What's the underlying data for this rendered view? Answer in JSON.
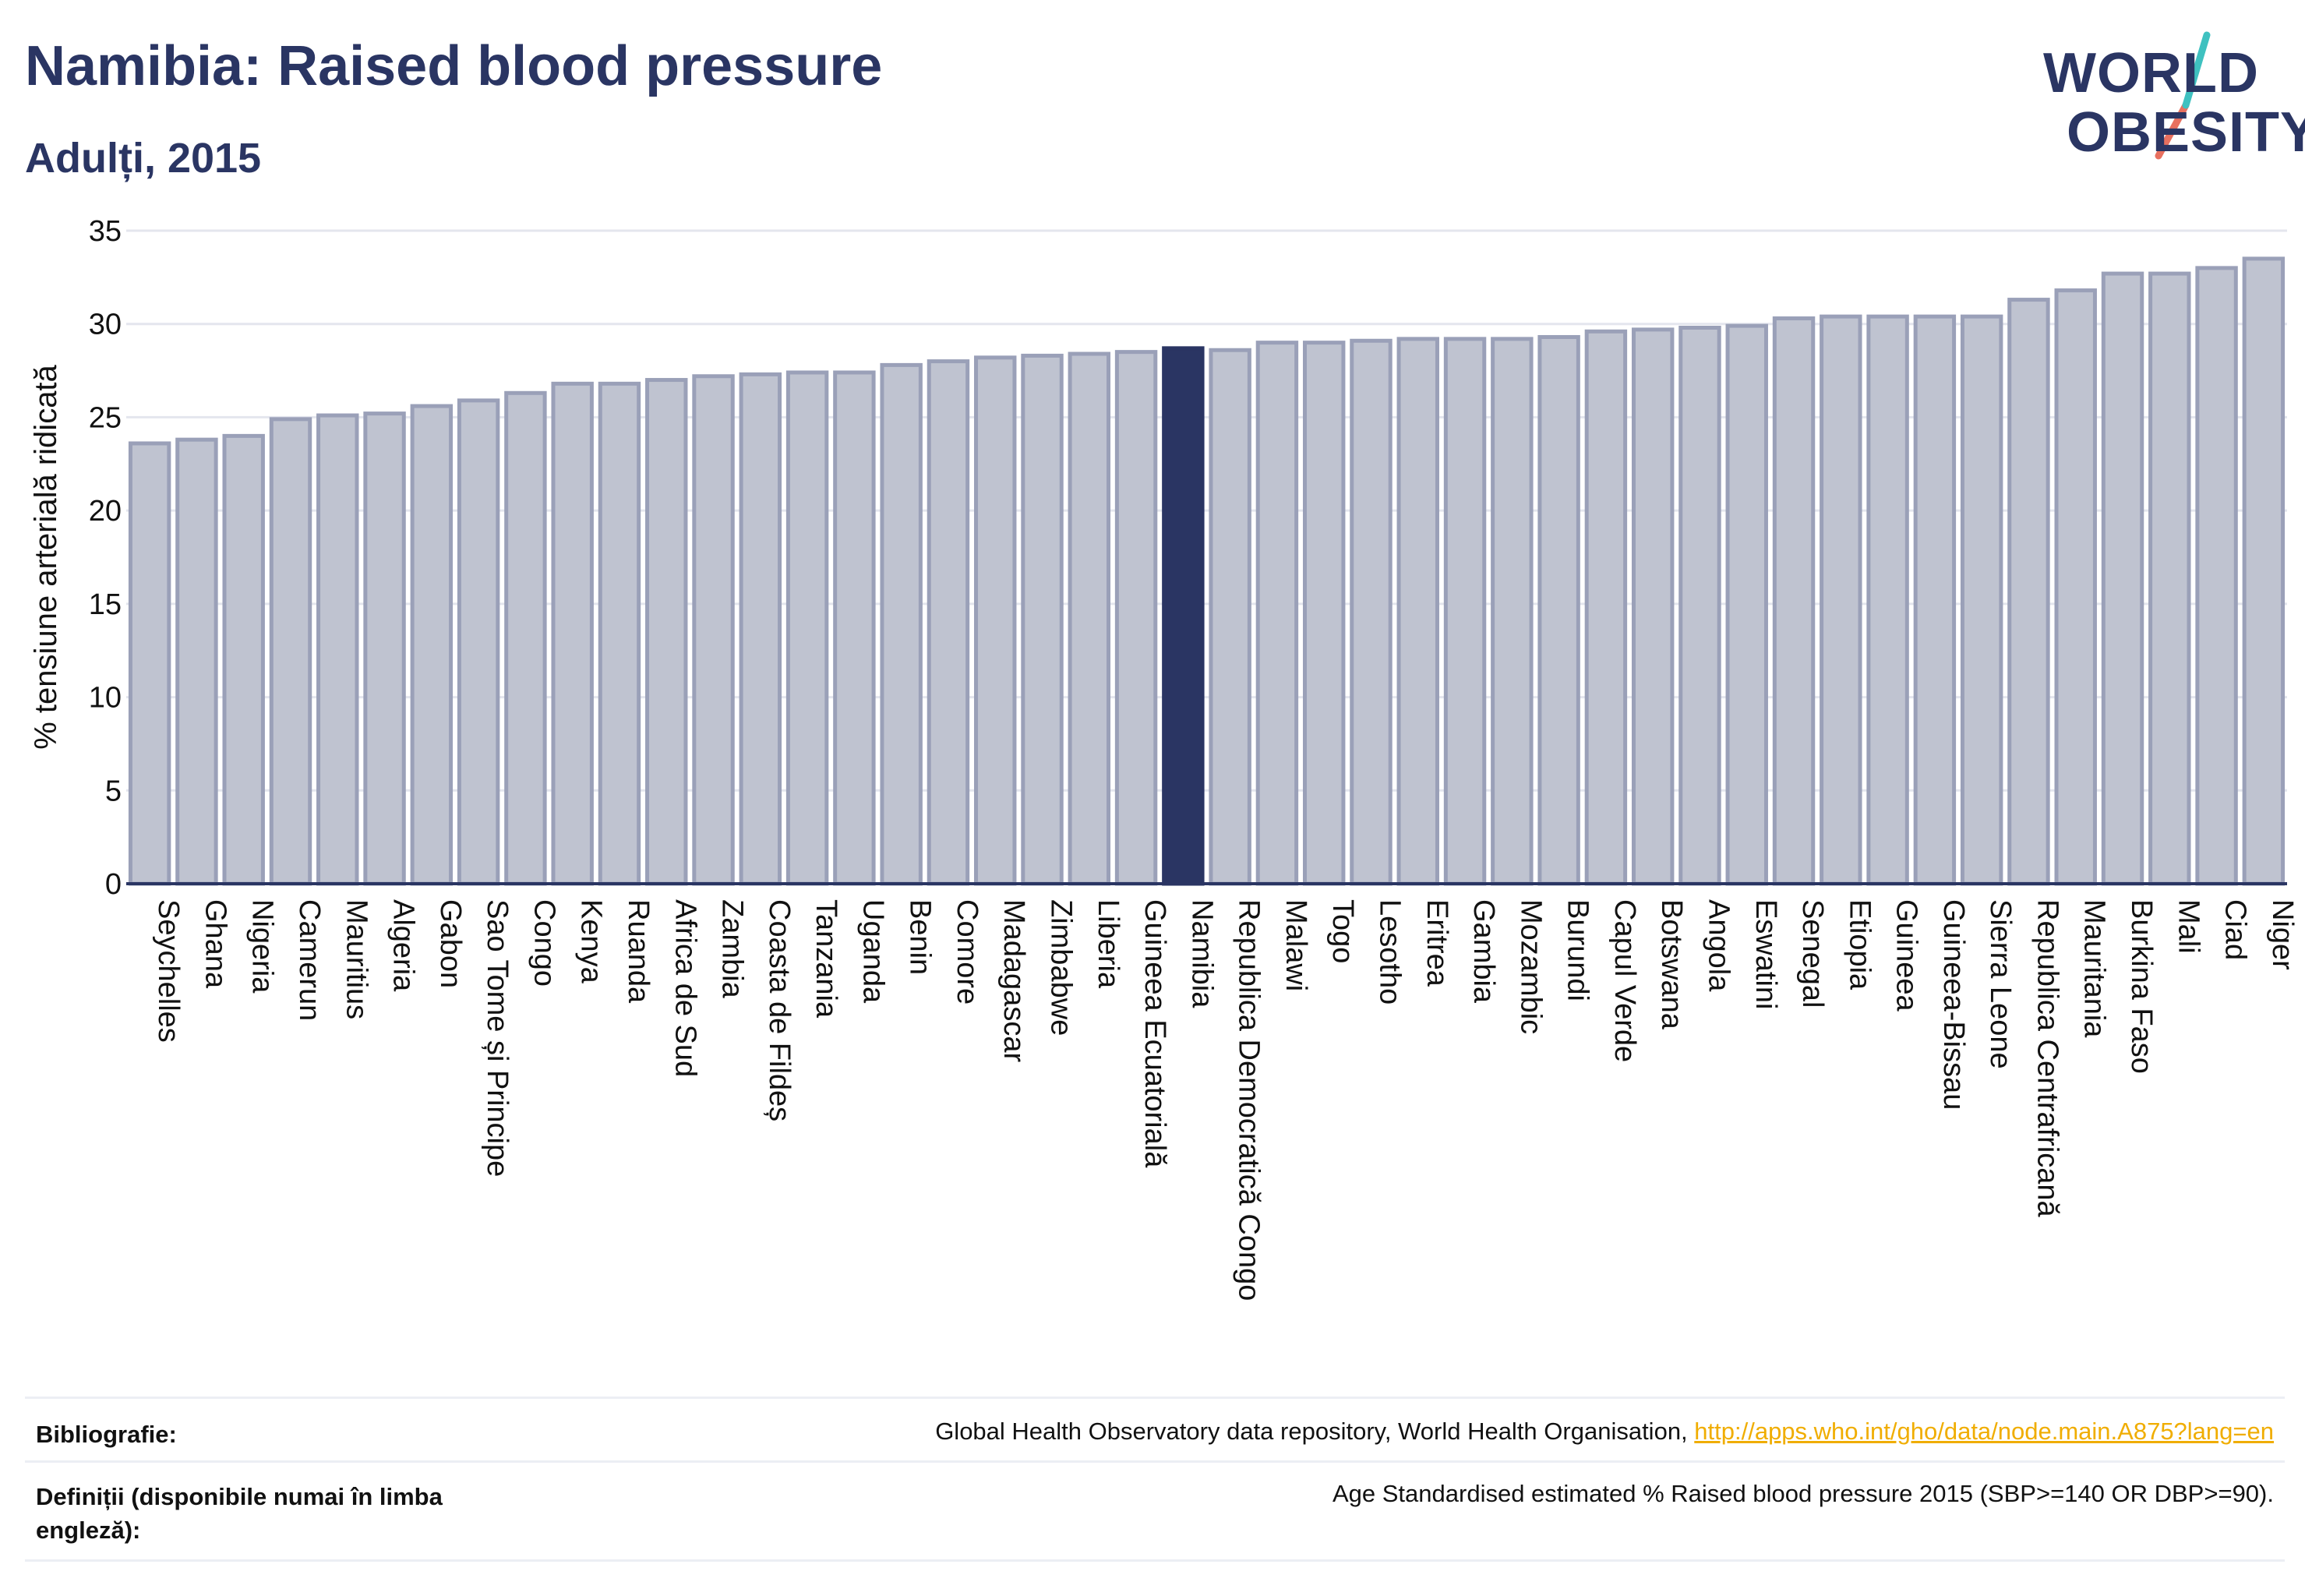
{
  "header": {
    "title": "Namibia: Raised blood pressure",
    "subtitle": "Adulți, 2015"
  },
  "logo": {
    "line1": "WORLD",
    "line2": "OBESITY",
    "slash_colors": [
      "#3fc1c0",
      "#e8705f"
    ]
  },
  "chart_data": {
    "type": "bar",
    "ylabel": "% tensiune arterială ridicată",
    "ylim": [
      0,
      35
    ],
    "yticks": [
      0,
      5,
      10,
      15,
      20,
      25,
      30,
      35
    ],
    "highlight": "Namibia",
    "colors": {
      "bar": "#bfc3d0",
      "bar_edge": "#9aa0b8",
      "highlight": "#2a3563",
      "grid": "#e4e6ee",
      "axis": "#2a3563"
    },
    "categories": [
      "Seychelles",
      "Ghana",
      "Nigeria",
      "Camerun",
      "Mauritius",
      "Algeria",
      "Gabon",
      "Sao Tome și Principe",
      "Congo",
      "Kenya",
      "Ruanda",
      "Africa de Sud",
      "Zambia",
      "Coasta de Fildeș",
      "Tanzania",
      "Uganda",
      "Benin",
      "Comore",
      "Madagascar",
      "Zimbabwe",
      "Liberia",
      "Guineea Ecuatorială",
      "Namibia",
      "Republica Democratică Congo",
      "Malawi",
      "Togo",
      "Lesotho",
      "Eritrea",
      "Gambia",
      "Mozambic",
      "Burundi",
      "Capul Verde",
      "Botswana",
      "Angola",
      "Eswatini",
      "Senegal",
      "Etiopia",
      "Guineea",
      "Guineea-Bissau",
      "Sierra Leone",
      "Republica Centrafricană",
      "Mauritania",
      "Burkina Faso",
      "Mali",
      "Ciad",
      "Niger"
    ],
    "values": [
      23.6,
      23.8,
      24.0,
      24.9,
      25.1,
      25.2,
      25.6,
      25.9,
      26.3,
      26.8,
      26.8,
      27.0,
      27.2,
      27.3,
      27.4,
      27.4,
      27.8,
      28.0,
      28.2,
      28.3,
      28.4,
      28.5,
      28.7,
      28.6,
      29.0,
      29.0,
      29.1,
      29.2,
      29.2,
      29.2,
      29.3,
      29.6,
      29.7,
      29.8,
      29.9,
      30.3,
      30.4,
      30.4,
      30.4,
      30.4,
      31.3,
      31.8,
      32.7,
      32.7,
      33.0,
      33.5
    ]
  },
  "footer": {
    "bibliography_label": "Bibliografie:",
    "bibliography_text": "Global Health Observatory data repository, World Health Organisation, ",
    "bibliography_link": "http://apps.who.int/gho/data/node.main.A875?lang=en",
    "definitions_label": "Definiții (disponibile numai în limba engleză):",
    "definitions_text": "Age Standardised estimated % Raised blood pressure 2015 (SBP>=140 OR DBP>=90)."
  }
}
